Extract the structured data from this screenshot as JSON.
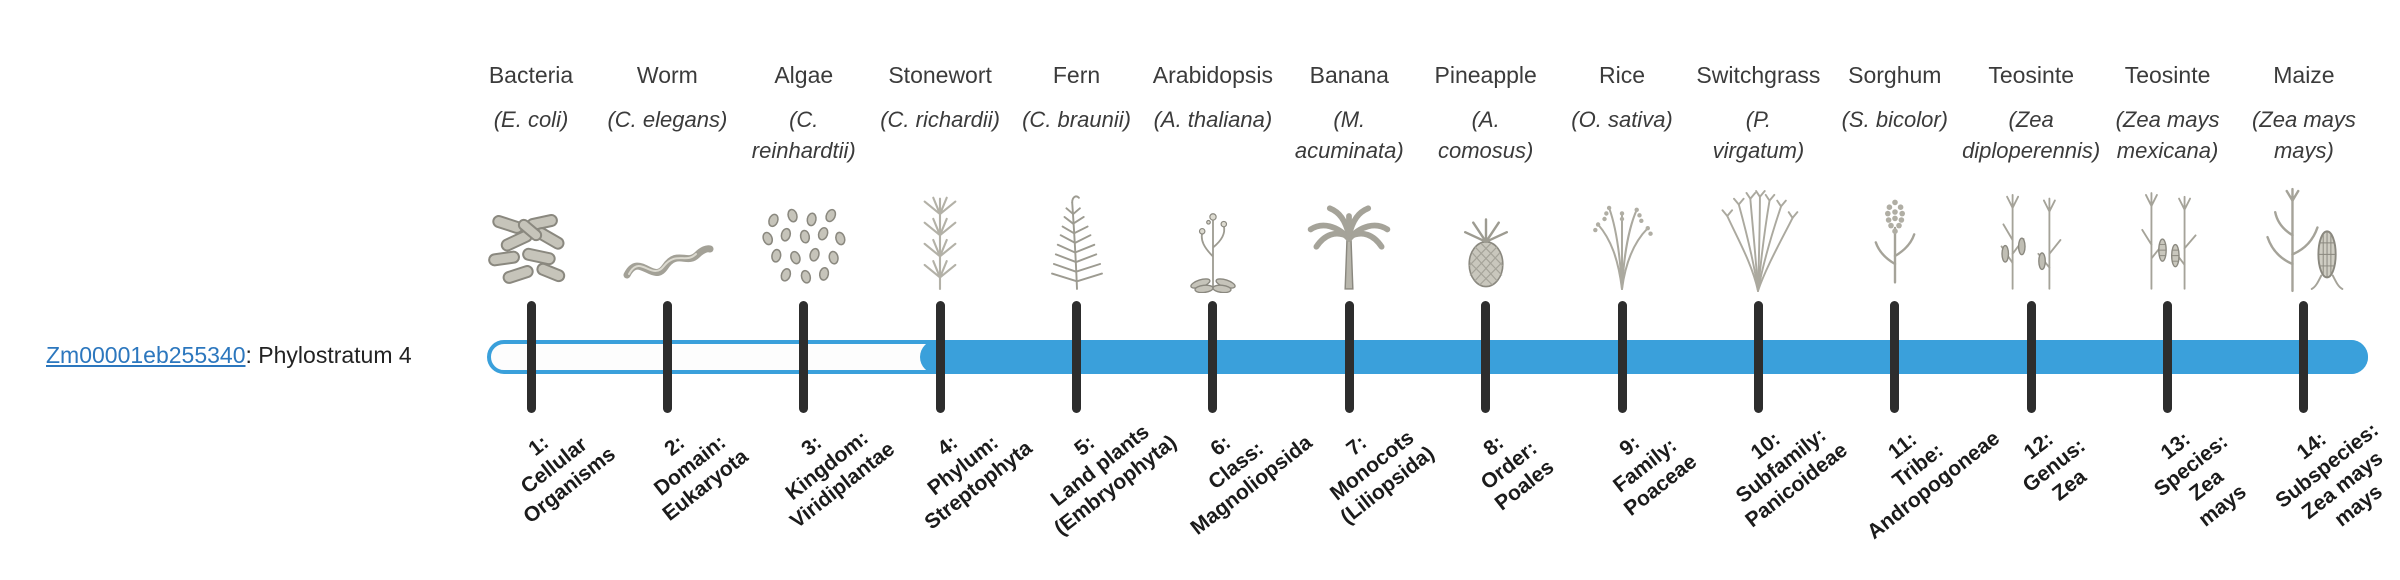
{
  "gene": {
    "id": "Zm00001eb255340",
    "suffix": ": Phylostratum 4",
    "phylostratum": 4
  },
  "bar": {
    "filled_from_stratum": 4
  },
  "colors": {
    "bar_blue": "#3aa0db",
    "tick_color": "#2d2d2d",
    "link_blue": "#2c77be",
    "sketch_gray": "#9b998f"
  },
  "strata": [
    {
      "num": "1",
      "common": "Bacteria",
      "latin_lines": [
        "(E. coli)"
      ],
      "tick_lines": [
        "1:",
        "Cellular",
        "Organisms"
      ],
      "icon": "bacteria-icon"
    },
    {
      "num": "2",
      "common": "Worm",
      "latin_lines": [
        "(C. elegans)"
      ],
      "tick_lines": [
        "2:",
        "Domain:",
        "Eukaryota"
      ],
      "icon": "worm-icon"
    },
    {
      "num": "3",
      "common": "Algae",
      "latin_lines": [
        "(C.",
        "reinhardtii)"
      ],
      "tick_lines": [
        "3:",
        "Kingdom:",
        "Viridiplantae"
      ],
      "icon": "algae-icon"
    },
    {
      "num": "4",
      "common": "Stonewort",
      "latin_lines": [
        "(C. richardii)"
      ],
      "tick_lines": [
        "4:",
        "Phylum:",
        "Streptophyta"
      ],
      "icon": "stonewort-icon"
    },
    {
      "num": "5",
      "common": "Fern",
      "latin_lines": [
        "(C. braunii)"
      ],
      "tick_lines": [
        "5:",
        "Land plants",
        "(Embryophyta)"
      ],
      "icon": "fern-icon"
    },
    {
      "num": "6",
      "common": "Arabidopsis",
      "latin_lines": [
        "(A. thaliana)"
      ],
      "tick_lines": [
        "6:",
        "Class:",
        "Magnoliopsida"
      ],
      "icon": "arabidopsis-icon"
    },
    {
      "num": "7",
      "common": "Banana",
      "latin_lines": [
        "(M.",
        "acuminata)"
      ],
      "tick_lines": [
        "7:",
        "Monocots",
        "(Liliopsida)"
      ],
      "icon": "banana-icon"
    },
    {
      "num": "8",
      "common": "Pineapple",
      "latin_lines": [
        "(A.",
        "comosus)"
      ],
      "tick_lines": [
        "8:",
        "Order:",
        "Poales"
      ],
      "icon": "pineapple-icon"
    },
    {
      "num": "9",
      "common": "Rice",
      "latin_lines": [
        "(O. sativa)"
      ],
      "tick_lines": [
        "9:",
        "Family:",
        "Poaceae"
      ],
      "icon": "rice-icon"
    },
    {
      "num": "10",
      "common": "Switchgrass",
      "latin_lines": [
        "(P.",
        "virgatum)"
      ],
      "tick_lines": [
        "10:",
        "Subfamily:",
        "Panicoideae"
      ],
      "icon": "switchgrass-icon"
    },
    {
      "num": "11",
      "common": "Sorghum",
      "latin_lines": [
        "(S. bicolor)"
      ],
      "tick_lines": [
        "11:",
        "Tribe:",
        "Andropogoneae"
      ],
      "icon": "sorghum-icon"
    },
    {
      "num": "12",
      "common": "Teosinte",
      "latin_lines": [
        "(Zea",
        "diploperennis)"
      ],
      "tick_lines": [
        "12:",
        "Genus:",
        "Zea"
      ],
      "icon": "teosinte-diplo-icon"
    },
    {
      "num": "13",
      "common": "Teosinte",
      "latin_lines": [
        "(Zea mays",
        "mexicana)"
      ],
      "tick_lines": [
        "13:",
        "Species:",
        "Zea",
        "mays"
      ],
      "icon": "teosinte-mexicana-icon"
    },
    {
      "num": "14",
      "common": "Maize",
      "latin_lines": [
        "(Zea mays",
        "mays)"
      ],
      "tick_lines": [
        "14:",
        "Subspecies:",
        "Zea mays",
        "mays"
      ],
      "icon": "maize-icon"
    }
  ]
}
